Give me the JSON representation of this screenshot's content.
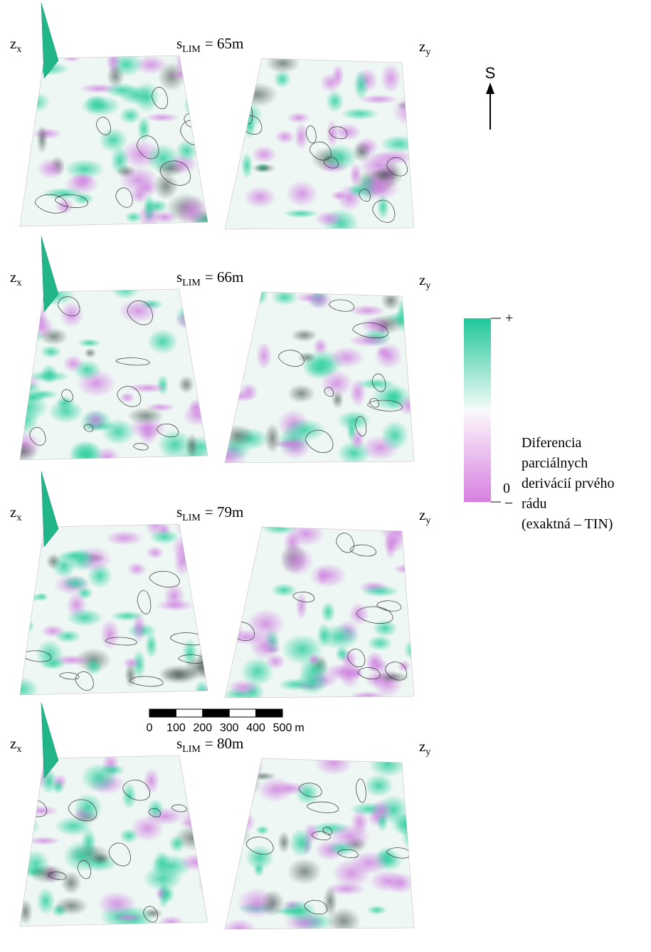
{
  "panels": [
    {
      "left_label": {
        "main": "z",
        "sub": "x"
      },
      "title": {
        "main": "s",
        "sub": "LIM",
        "rest": "= 65m"
      },
      "right_label": {
        "main": "z",
        "sub": "y"
      }
    },
    {
      "left_label": {
        "main": "z",
        "sub": "x"
      },
      "title": {
        "main": "s",
        "sub": "LIM",
        "rest": "= 66m"
      },
      "right_label": {
        "main": "z",
        "sub": "y"
      }
    },
    {
      "left_label": {
        "main": "z",
        "sub": "x"
      },
      "title": {
        "main": "s",
        "sub": "LIM",
        "rest": "= 79m"
      },
      "right_label": {
        "main": "z",
        "sub": "y"
      }
    },
    {
      "left_label": {
        "main": "z",
        "sub": "x"
      },
      "title": {
        "main": "s",
        "sub": "LIM",
        "rest": "= 80m"
      },
      "right_label": {
        "main": "z",
        "sub": "y"
      }
    }
  ],
  "north": "S",
  "legend": {
    "plus": "+",
    "zero": "0",
    "minus": "–",
    "caption": [
      "Diferencia",
      "parciálnych",
      "derivácií prvého",
      "rádu",
      "(exaktná – TIN)"
    ]
  },
  "scale_bar": {
    "labels": [
      "0",
      "100",
      "200",
      "300",
      "400",
      "500"
    ],
    "unit": "m"
  }
}
